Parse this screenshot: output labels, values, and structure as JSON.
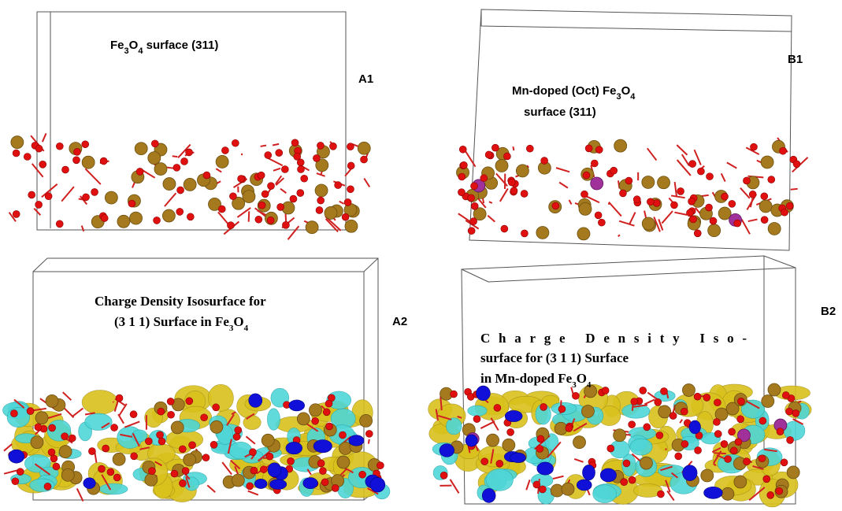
{
  "panels": [
    {
      "label": "A1",
      "title": [
        [
          {
            "text": "Fe"
          },
          {
            "sub": "3"
          },
          {
            "text": "O"
          },
          {
            "sub": "4"
          },
          {
            "text": " surface (311)"
          }
        ]
      ]
    },
    {
      "label": "B1",
      "title": [
        [
          {
            "text": "Mn-doped (Oct) Fe"
          },
          {
            "sub": "3"
          },
          {
            "text": "O"
          },
          {
            "sub": "4"
          }
        ],
        [
          {
            "text": "surface (311)"
          }
        ]
      ]
    },
    {
      "label": "A2",
      "title": [
        [
          {
            "text": "Charge Density Isosurface for"
          }
        ],
        [
          {
            "text": "(3 1 1) Surface in Fe"
          },
          {
            "sub": "3"
          },
          {
            "text": "O"
          },
          {
            "sub": "4"
          }
        ]
      ]
    },
    {
      "label": "B2",
      "title": [
        [
          {
            "text": "Charge Density Iso-"
          }
        ],
        [
          {
            "text": "surface for  (3 1 1) Surface"
          }
        ],
        [
          {
            "text": "in Mn-doped Fe"
          },
          {
            "sub": "3"
          },
          {
            "text": "O"
          },
          {
            "sub": "4"
          }
        ]
      ]
    }
  ]
}
